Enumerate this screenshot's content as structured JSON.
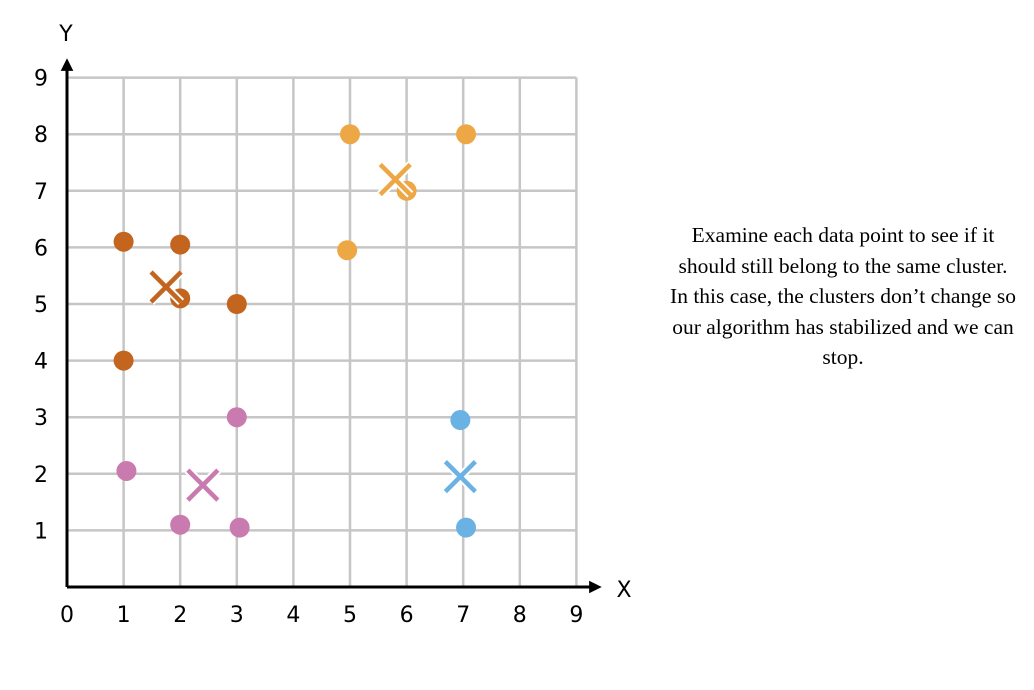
{
  "caption": "Examine each data point to see if it should still belong to the same cluster. In this case, the clusters don’t change so our algorithm has stabilized and we can stop.",
  "chart_data": {
    "type": "scatter",
    "xlabel": "X",
    "ylabel": "Y",
    "xlim": [
      0,
      9
    ],
    "ylim": [
      0,
      9
    ],
    "x_ticks": [
      "0",
      "1",
      "2",
      "3",
      "4",
      "5",
      "6",
      "7",
      "8",
      "9"
    ],
    "y_ticks": [
      "1",
      "2",
      "3",
      "4",
      "5",
      "6",
      "7",
      "8",
      "9"
    ],
    "grid": true,
    "grid_color": "#c6c6c6",
    "series": [
      {
        "color": "#c4651f",
        "points": [
          [
            1,
            6.1
          ],
          [
            2,
            6.05
          ],
          [
            1,
            4
          ],
          [
            3,
            5
          ],
          [
            2,
            5.1
          ]
        ],
        "centroid": [
          1.75,
          5.3
        ]
      },
      {
        "color": "#eea745",
        "points": [
          [
            5,
            8
          ],
          [
            7.05,
            8
          ],
          [
            4.95,
            5.95
          ],
          [
            6,
            7
          ]
        ],
        "centroid": [
          5.8,
          7.2
        ]
      },
      {
        "color": "#c97aaf",
        "points": [
          [
            1.05,
            2.05
          ],
          [
            3,
            3
          ],
          [
            2,
            1.1
          ],
          [
            3.05,
            1.05
          ]
        ],
        "centroid": [
          2.4,
          1.8
        ]
      },
      {
        "color": "#6ab2e4",
        "points": [
          [
            6.95,
            2.95
          ],
          [
            7.05,
            1.05
          ]
        ],
        "centroid": [
          6.95,
          1.95
        ]
      }
    ]
  }
}
